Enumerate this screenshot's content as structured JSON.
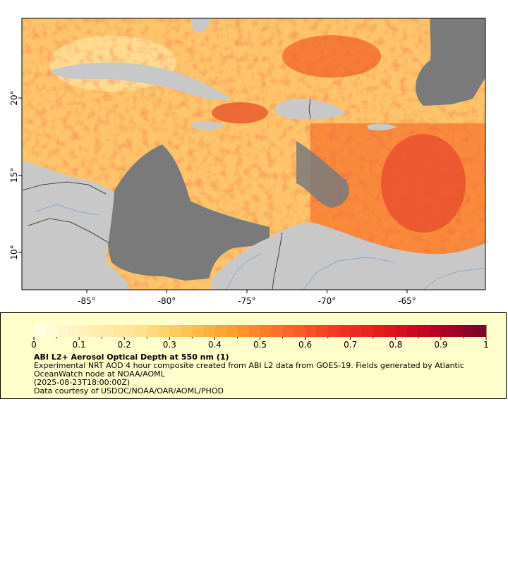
{
  "map": {
    "x_axis": {
      "ticks": [
        {
          "lon": -85,
          "label": "-85°"
        },
        {
          "lon": -80,
          "label": "-80°"
        },
        {
          "lon": -75,
          "label": "-75°"
        },
        {
          "lon": -70,
          "label": "-70°"
        },
        {
          "lon": -65,
          "label": "-65°"
        }
      ]
    },
    "y_axis": {
      "ticks": [
        {
          "lat": 20,
          "label": "20°"
        },
        {
          "lat": 15,
          "label": "15°"
        },
        {
          "lat": 10,
          "label": "10°"
        }
      ]
    },
    "colors": {
      "land": "#c8c8c8",
      "no_data": "#7a7a7a",
      "rivers": "#6f9fcf",
      "borders": "#222222"
    }
  },
  "legend": {
    "title": "ABI L2+ Aerosol Optical Depth at 550 nm (1)",
    "description": "Experimental NRT AOD 4 hour composite created from ABI L2 data from GOES-19. Fields generated by Atlantic OceanWatch node at NOAA/AOML",
    "timestamp": "(2025-08-23T18:00:00Z)",
    "credit": "Data courtesy of USDOC/NOAA/OAR/AOML/PHOD",
    "colorbar": {
      "min": 0,
      "max": 1,
      "tick_labels": [
        "0",
        "0.1",
        "0.2",
        "0.3",
        "0.4",
        "0.5",
        "0.6",
        "0.7",
        "0.8",
        "0.9",
        "1"
      ],
      "colors": [
        "#ffffe5",
        "#fff0b5",
        "#fee391",
        "#fec44f",
        "#fe9929",
        "#fb6a2a",
        "#f03b20",
        "#e31a1c",
        "#bd0026",
        "#800026"
      ]
    }
  }
}
